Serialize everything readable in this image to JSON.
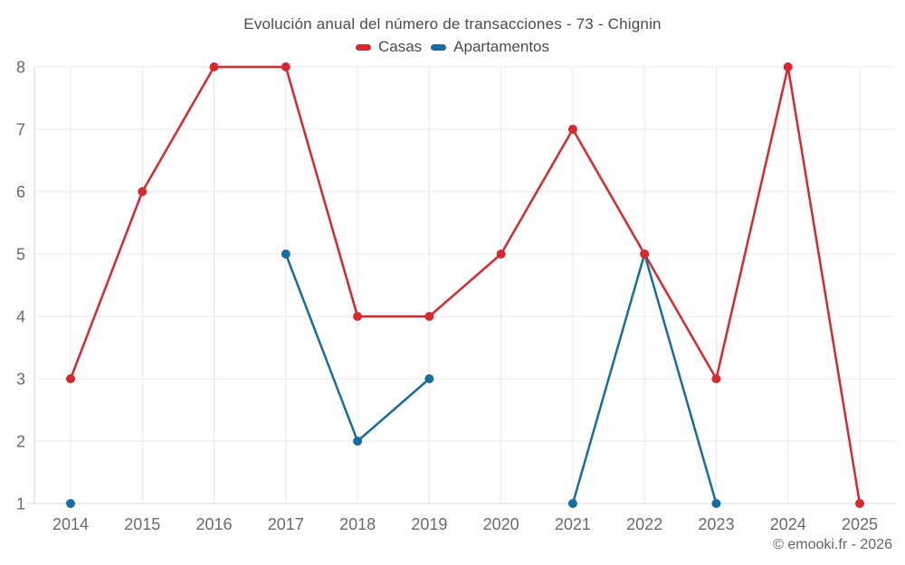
{
  "watermark": "© emooki.fr - 2026",
  "chart_data": {
    "type": "line",
    "title": "Evolución anual del número de transacciones - 73 - Chignin",
    "x": [
      2014,
      2015,
      2016,
      2017,
      2018,
      2019,
      2020,
      2021,
      2022,
      2023,
      2024,
      2025
    ],
    "x_tick_labels": [
      "2014",
      "2015",
      "2016",
      "2017",
      "2018",
      "2019",
      "2020",
      "2021",
      "2022",
      "2023",
      "2024",
      "2025"
    ],
    "yticks": [
      1,
      2,
      3,
      4,
      5,
      6,
      7,
      8
    ],
    "ylim": [
      1,
      8
    ],
    "grid": true,
    "legend_position": "top",
    "series": [
      {
        "name": "Casas",
        "color": "#d7282d",
        "values": [
          3,
          6,
          8,
          8,
          4,
          4,
          5,
          7,
          5,
          3,
          8,
          1
        ]
      },
      {
        "name": "Apartamentos",
        "color": "#176e9e",
        "values": [
          1,
          null,
          null,
          5,
          2,
          3,
          null,
          1,
          5,
          1,
          null,
          null
        ]
      }
    ],
    "colors": {
      "gridline": "#e8e8e8",
      "axis_line": "#d8d8d8",
      "tick_label": "#6b6b6b",
      "title_text": "#4b4b4b",
      "watermark_text": "#666666"
    }
  }
}
